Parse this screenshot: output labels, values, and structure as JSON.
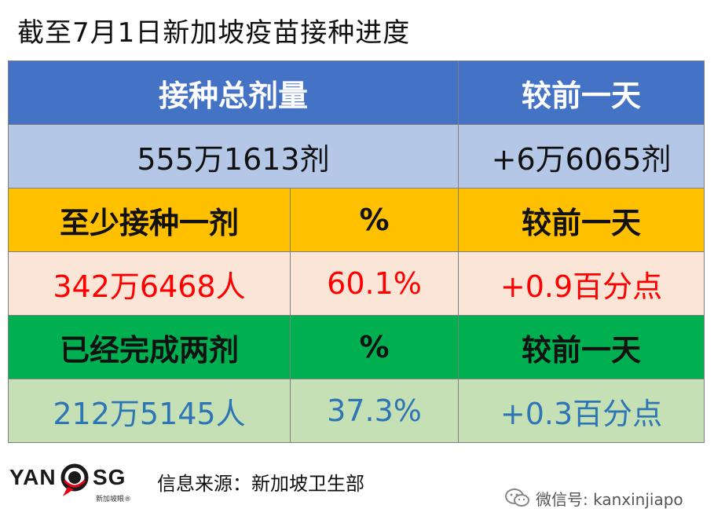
{
  "title": "截至7月1日新加坡疫苗接种进度",
  "table": {
    "row1": {
      "col1": "接种总剂量",
      "col2": "较前一天"
    },
    "row2": {
      "col1": "555万1613剂",
      "col2": "+6万6065剂"
    },
    "row3": {
      "col1": "至少接种一剂",
      "col2": "%",
      "col3": "较前一天"
    },
    "row4": {
      "col1": "342万6468人",
      "col2": "60.1%",
      "col3": "+0.9百分点"
    },
    "row5": {
      "col1": "已经完成两剂",
      "col2": "%",
      "col3": "较前一天"
    },
    "row6": {
      "col1": "212万5145人",
      "col2": "37.3%",
      "col3": "+0.3百分点"
    }
  },
  "footer": {
    "logo_left": "YAN",
    "logo_right": "SG",
    "logo_sub": "新加坡眼®",
    "source": "信息来源：新加坡卫生部",
    "wechat": "微信号: kanxinjiapo"
  },
  "colors": {
    "header_blue": "#4472c4",
    "light_blue": "#b4c7e7",
    "orange": "#ffc000",
    "peach": "#fbe5d6",
    "green": "#00b050",
    "light_green": "#c5e0b4",
    "red_text": "#ff0000",
    "blue_text": "#2e75b6"
  },
  "icons": [
    "magnifier-logo-icon",
    "wechat-icon"
  ]
}
